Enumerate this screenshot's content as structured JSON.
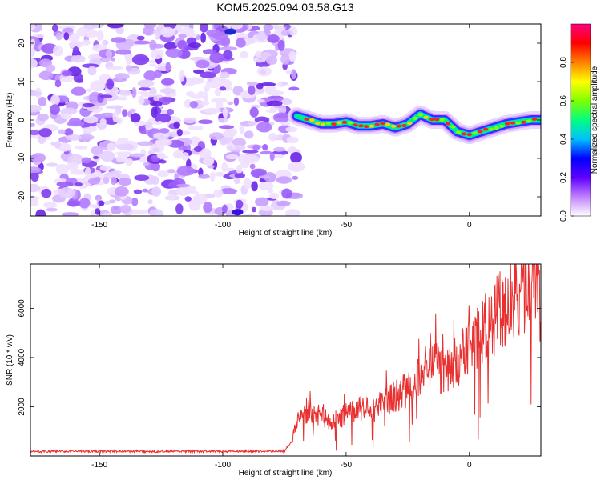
{
  "title": "KOM5.2025.094.03.58.G13",
  "chart_data": [
    {
      "type": "heatmap",
      "xlabel": "Height of straight line (km)",
      "ylabel": "Frequency (Hz)",
      "xlim": [
        -178,
        29
      ],
      "ylim": [
        -25,
        25
      ],
      "xticks": [
        -150,
        -100,
        -50,
        0
      ],
      "yticks": [
        -20,
        -10,
        0,
        10,
        20
      ],
      "noise_region_x": [
        -178,
        -70
      ],
      "signal_trace": {
        "x": [
          -70,
          -65,
          -60,
          -55,
          -50,
          -45,
          -40,
          -35,
          -30,
          -25,
          -20,
          -15,
          -10,
          -5,
          0,
          5,
          10,
          15,
          20,
          25,
          29
        ],
        "y": [
          1,
          0,
          -1,
          -1,
          -0.5,
          -1.5,
          -1.5,
          -1,
          -2,
          -1,
          1.5,
          0,
          0,
          -3,
          -4,
          -3,
          -2,
          -1,
          -0.5,
          0,
          0
        ]
      },
      "colorbar": {
        "label": "Normalized spectral amplitude",
        "ticks": [
          0.0,
          0.2,
          0.4,
          0.6,
          0.8
        ],
        "range": [
          0,
          1
        ],
        "colors": [
          "#ffffff",
          "#c080ff",
          "#6000ff",
          "#0000ff",
          "#00c0ff",
          "#00ff80",
          "#80ff00",
          "#ffff00",
          "#ff8000",
          "#ff0000",
          "#ff0080"
        ]
      }
    },
    {
      "type": "line",
      "xlabel": "Height of straight line (km)",
      "ylabel": "SNR (10 * v/v)",
      "xlim": [
        -178,
        29
      ],
      "ylim": [
        0,
        7800
      ],
      "xticks": [
        -150,
        -100,
        -50,
        0
      ],
      "yticks": [
        2000,
        4000,
        6000
      ],
      "color": "#e83030",
      "trend": {
        "x": [
          -178,
          -150,
          -100,
          -75,
          -72,
          -70,
          -65,
          -60,
          -55,
          -50,
          -45,
          -40,
          -35,
          -30,
          -25,
          -20,
          -15,
          -10,
          -5,
          0,
          5,
          10,
          15,
          20,
          25,
          29
        ],
        "y": [
          180,
          190,
          185,
          200,
          600,
          1500,
          1800,
          1600,
          1400,
          1700,
          1900,
          2000,
          2200,
          2400,
          2700,
          3300,
          3700,
          3400,
          3900,
          4400,
          5000,
          5600,
          6200,
          6700,
          7000,
          7300
        ]
      }
    }
  ]
}
